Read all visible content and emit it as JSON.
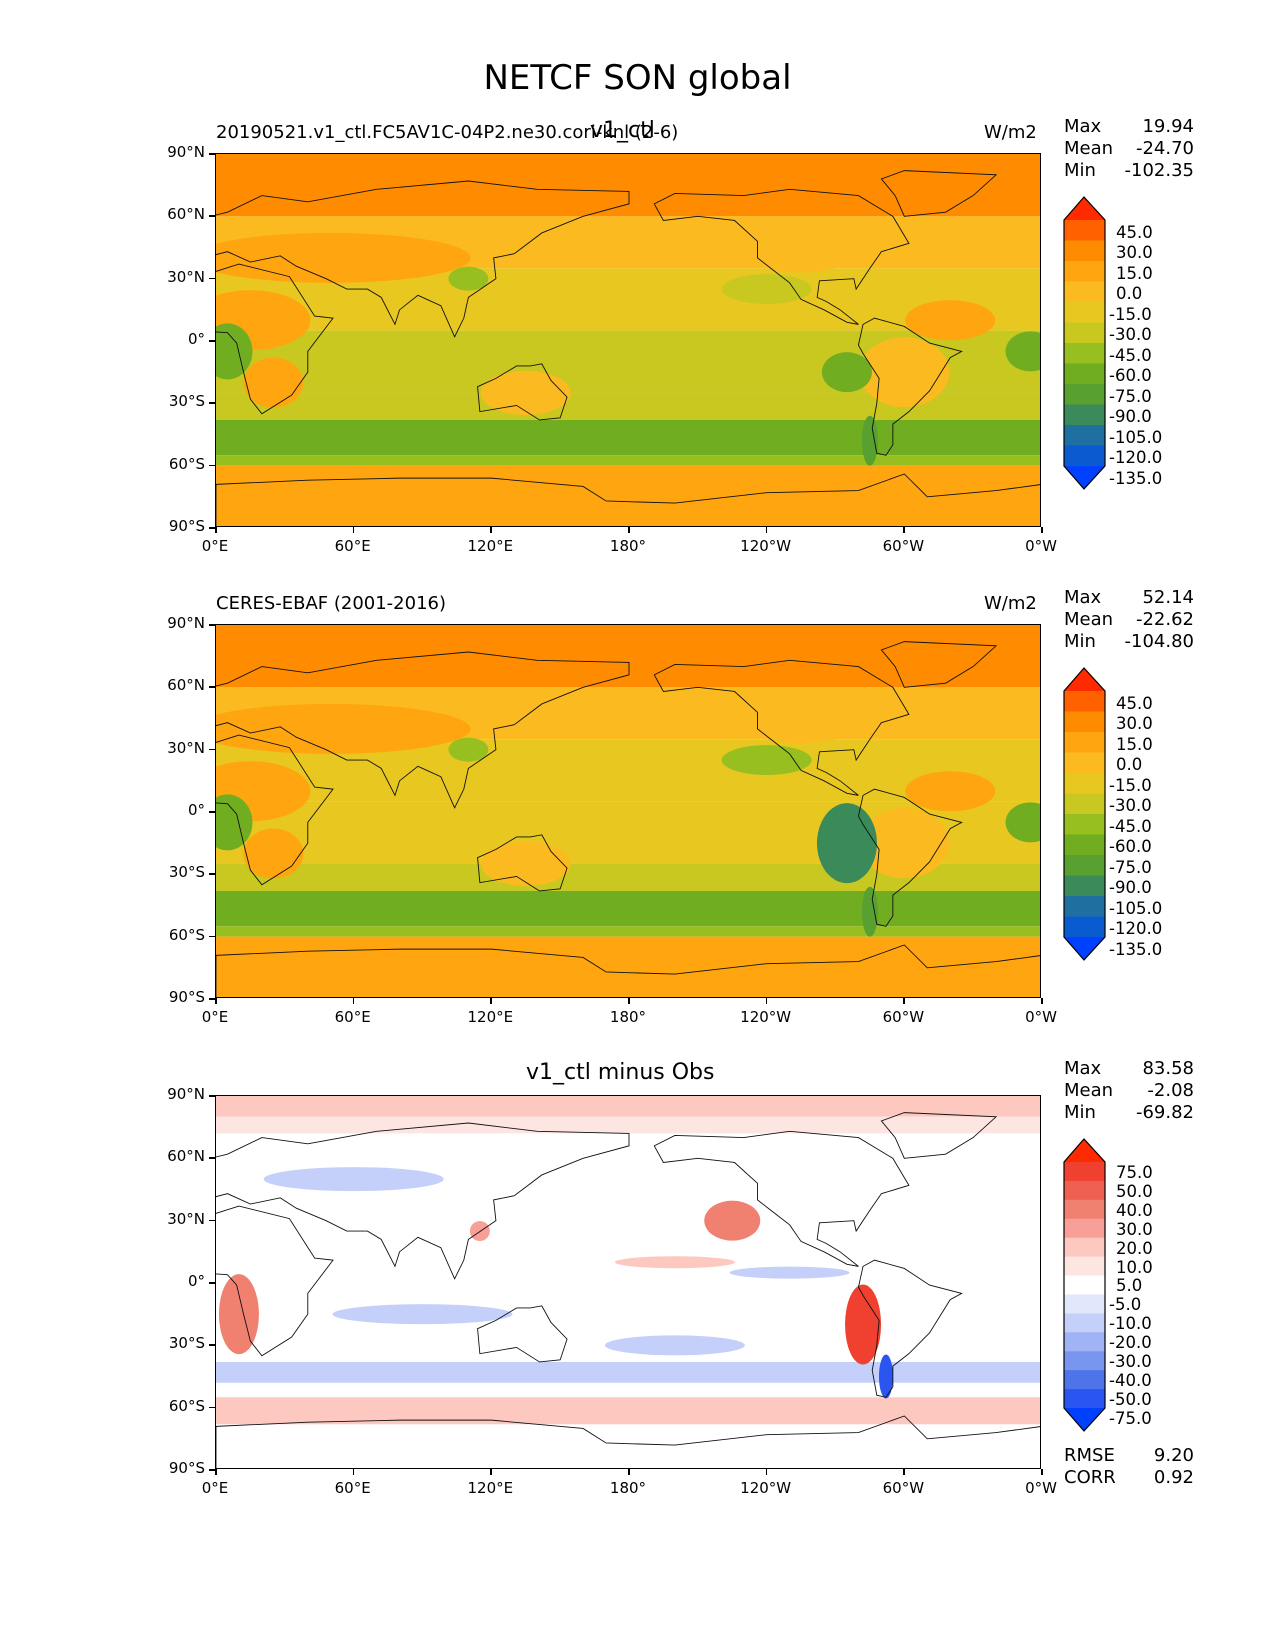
{
  "figure_title": "NETCF SON global",
  "lat_ticks": [
    "90°N",
    "60°N",
    "30°N",
    "0°",
    "30°S",
    "60°S",
    "90°S"
  ],
  "lon_ticks": [
    "0°E",
    "60°E",
    "120°E",
    "180°",
    "120°W",
    "60°W",
    "0°W"
  ],
  "panels": [
    {
      "left_title": "20190521.v1_ctl.FC5AV1C-04P2.ne30.cori-knl (2-6)",
      "center_title": "v1_ctl",
      "units": "W/m2",
      "stats": {
        "max_label": "Max",
        "max": "19.94",
        "mean_label": "Mean",
        "mean": "-24.70",
        "min_label": "Min",
        "min": "-102.35"
      }
    },
    {
      "left_title": "CERES-EBAF (2001-2016)",
      "center_title": "",
      "units": "W/m2",
      "stats": {
        "max_label": "Max",
        "max": "52.14",
        "mean_label": "Mean",
        "mean": "-22.62",
        "min_label": "Min",
        "min": "-104.80"
      }
    },
    {
      "left_title": "",
      "center_title": "v1_ctl minus Obs",
      "units": "",
      "stats": {
        "max_label": "Max",
        "max": "83.58",
        "mean_label": "Mean",
        "mean": "-2.08",
        "min_label": "Min",
        "min": "-69.82"
      },
      "rmse_label": "RMSE",
      "rmse": "9.20",
      "corr_label": "CORR",
      "corr": "0.92"
    }
  ],
  "colorbar_main": {
    "labels": [
      "45.0",
      "30.0",
      "15.0",
      "0.0",
      "-15.0",
      "-30.0",
      "-45.0",
      "-60.0",
      "-75.0",
      "-90.0",
      "-105.0",
      "-120.0",
      "-135.0"
    ],
    "colors": [
      "#ff2a00",
      "#ff6000",
      "#ff8c00",
      "#ffa510",
      "#fbbb20",
      "#e8c820",
      "#c8c820",
      "#98bf20",
      "#70ad20",
      "#58a030",
      "#3a8a5a",
      "#1f6fa0",
      "#0a5ad0",
      "#0040ff"
    ]
  },
  "colorbar_diff": {
    "labels": [
      "75.0",
      "50.0",
      "40.0",
      "30.0",
      "20.0",
      "10.0",
      "5.0",
      "-5.0",
      "-10.0",
      "-20.0",
      "-30.0",
      "-40.0",
      "-50.0",
      "-75.0"
    ],
    "colors": [
      "#ff2a00",
      "#f04030",
      "#f06050",
      "#f08070",
      "#f8a098",
      "#fcc8c0",
      "#fde6e2",
      "#ffffff",
      "#e2e8fc",
      "#c4d0fa",
      "#a0b4f5",
      "#7896ef",
      "#4e74ea",
      "#2a55f0",
      "#0040ff"
    ]
  },
  "chart_data": [
    {
      "type": "heatmap",
      "title": "v1_ctl",
      "subtitle": "20190521.v1_ctl.FC5AV1C-04P2.ne30.cori-knl (2-6)",
      "units": "W/m2",
      "x_ticks": [
        "0°E",
        "60°E",
        "120°E",
        "180°",
        "120°W",
        "60°W",
        "0°W"
      ],
      "y_ticks": [
        "90°N",
        "60°N",
        "30°N",
        "0°",
        "30°S",
        "60°S",
        "90°S"
      ],
      "xlim": [
        0,
        360
      ],
      "ylim": [
        -90,
        90
      ],
      "levels": [
        -135,
        -120,
        -105,
        -90,
        -75,
        -60,
        -45,
        -30,
        -15,
        0,
        15,
        30,
        45
      ],
      "max": 19.94,
      "mean": -24.7,
      "min": -102.35
    },
    {
      "type": "heatmap",
      "title": "",
      "subtitle": "CERES-EBAF (2001-2016)",
      "units": "W/m2",
      "x_ticks": [
        "0°E",
        "60°E",
        "120°E",
        "180°",
        "120°W",
        "60°W",
        "0°W"
      ],
      "y_ticks": [
        "90°N",
        "60°N",
        "30°N",
        "0°",
        "30°S",
        "60°S",
        "90°S"
      ],
      "xlim": [
        0,
        360
      ],
      "ylim": [
        -90,
        90
      ],
      "levels": [
        -135,
        -120,
        -105,
        -90,
        -75,
        -60,
        -45,
        -30,
        -15,
        0,
        15,
        30,
        45
      ],
      "max": 52.14,
      "mean": -22.62,
      "min": -104.8
    },
    {
      "type": "heatmap",
      "title": "v1_ctl minus Obs",
      "x_ticks": [
        "0°E",
        "60°E",
        "120°E",
        "180°",
        "120°W",
        "60°W",
        "0°W"
      ],
      "y_ticks": [
        "90°N",
        "60°N",
        "30°N",
        "0°",
        "30°S",
        "60°S",
        "90°S"
      ],
      "xlim": [
        0,
        360
      ],
      "ylim": [
        -90,
        90
      ],
      "levels": [
        -75,
        -50,
        -40,
        -30,
        -20,
        -10,
        -5,
        5,
        10,
        20,
        30,
        40,
        50,
        75
      ],
      "max": 83.58,
      "mean": -2.08,
      "min": -69.82,
      "rmse": 9.2,
      "corr": 0.92
    }
  ]
}
